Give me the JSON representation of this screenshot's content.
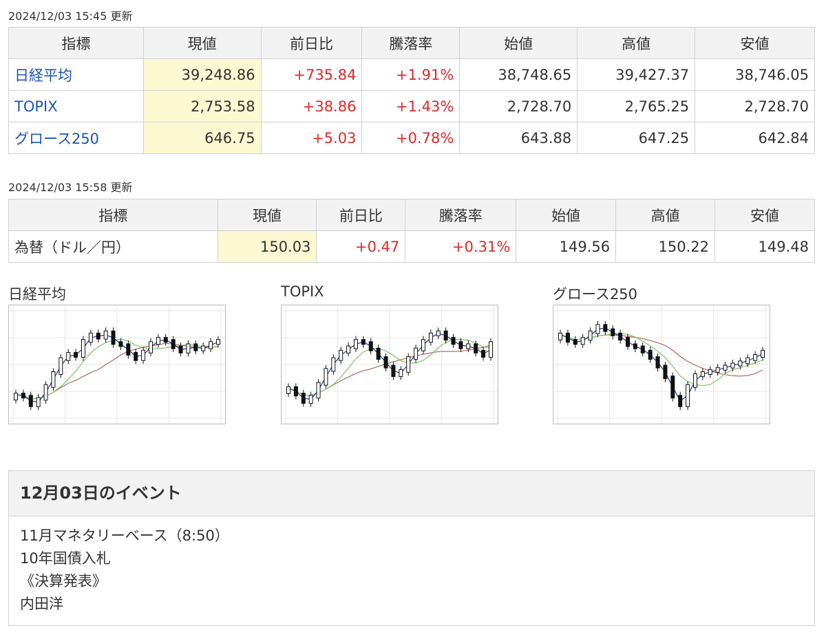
{
  "stocks": {
    "timestamp": "2024/12/03 15:45 更新",
    "headers": [
      "指標",
      "現値",
      "前日比",
      "騰落率",
      "始値",
      "高値",
      "安値"
    ],
    "rows": [
      {
        "name": "日経平均",
        "current": "39,248.86",
        "change": "+735.84",
        "rate": "+1.91%",
        "open": "38,748.65",
        "high": "39,427.37",
        "low": "38,746.05"
      },
      {
        "name": "TOPIX",
        "current": "2,753.58",
        "change": "+38.86",
        "rate": "+1.43%",
        "open": "2,728.70",
        "high": "2,765.25",
        "low": "2,728.70"
      },
      {
        "name": "グロース250",
        "current": "646.75",
        "change": "+5.03",
        "rate": "+0.78%",
        "open": "643.88",
        "high": "647.25",
        "low": "642.84"
      }
    ]
  },
  "fx": {
    "timestamp": "2024/12/03 15:58 更新",
    "headers": [
      "指標",
      "現値",
      "前日比",
      "騰落率",
      "始値",
      "高値",
      "安値"
    ],
    "rows": [
      {
        "name": "為替（ドル／円）",
        "current": "150.03",
        "change": "+0.47",
        "rate": "+0.31%",
        "open": "149.56",
        "high": "150.22",
        "low": "149.48"
      }
    ]
  },
  "charts": [
    {
      "title": "日経平均"
    },
    {
      "title": "TOPIX"
    },
    {
      "title": "グロース250"
    }
  ],
  "colors": {
    "up": "#e0292c",
    "link": "#1a55b5",
    "highlight": "#fbf8d2",
    "ma_short": "#1a3a8f",
    "ma_mid": "#7cc46a",
    "ma_long": "#b5665e"
  },
  "events": {
    "title": "12月03日のイベント",
    "items": [
      "11月マネタリーベース（8:50）",
      "10年国債入札",
      "《決算発表》",
      "内田洋"
    ]
  }
}
